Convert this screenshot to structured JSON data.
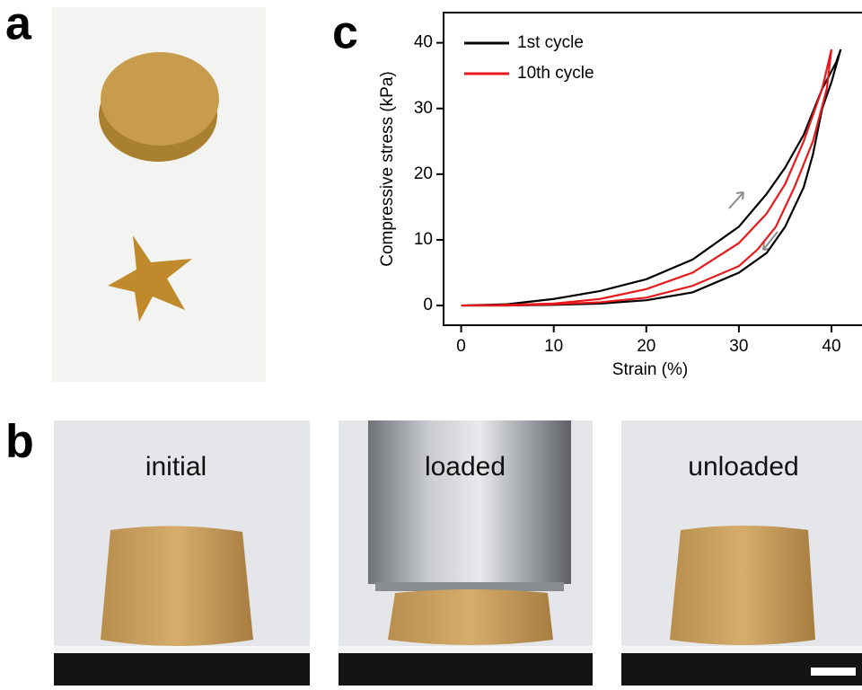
{
  "panel_labels": [
    "a",
    "b",
    "c"
  ],
  "photos": [
    {
      "label": "initial"
    },
    {
      "label": "loaded"
    },
    {
      "label": "unloaded"
    }
  ],
  "chart_data": {
    "type": "line",
    "xlabel": "Strain (%)",
    "ylabel": "Compressive stress (kPa)",
    "xlim": [
      -1.9,
      43.3
    ],
    "ylim": [
      -3,
      44.6
    ],
    "xticks": [
      0,
      10,
      20,
      30,
      40
    ],
    "yticks": [
      0,
      10,
      20,
      30,
      40
    ],
    "legend": "upper left",
    "series": [
      {
        "name": "1st cycle",
        "color": "#000000",
        "x": [
          0,
          5,
          10,
          15,
          20,
          25,
          30,
          33,
          35,
          37,
          39,
          40.5,
          41,
          40.8,
          40,
          39,
          38,
          37,
          35,
          33,
          30,
          25,
          20,
          15,
          10,
          5,
          0
        ],
        "values": [
          0,
          0.2,
          1,
          2.2,
          4,
          7,
          12,
          17,
          21,
          26,
          33,
          37,
          39,
          38,
          34,
          30,
          23,
          18,
          12,
          8,
          5,
          2,
          0.8,
          0.3,
          0.1,
          0,
          0
        ]
      },
      {
        "name": "10th cycle",
        "color": "#e8191c",
        "x": [
          0,
          5,
          10,
          15,
          20,
          25,
          30,
          33,
          35,
          37,
          39,
          40,
          39.5,
          38,
          36,
          34,
          32,
          30,
          25,
          20,
          15,
          10,
          5,
          0
        ],
        "values": [
          0,
          0.1,
          0.3,
          1,
          2.5,
          5,
          9.5,
          14,
          18.5,
          25,
          33,
          39,
          33,
          25,
          18,
          12,
          8.5,
          6,
          3,
          1.2,
          0.5,
          0.2,
          0,
          0
        ]
      }
    ]
  }
}
